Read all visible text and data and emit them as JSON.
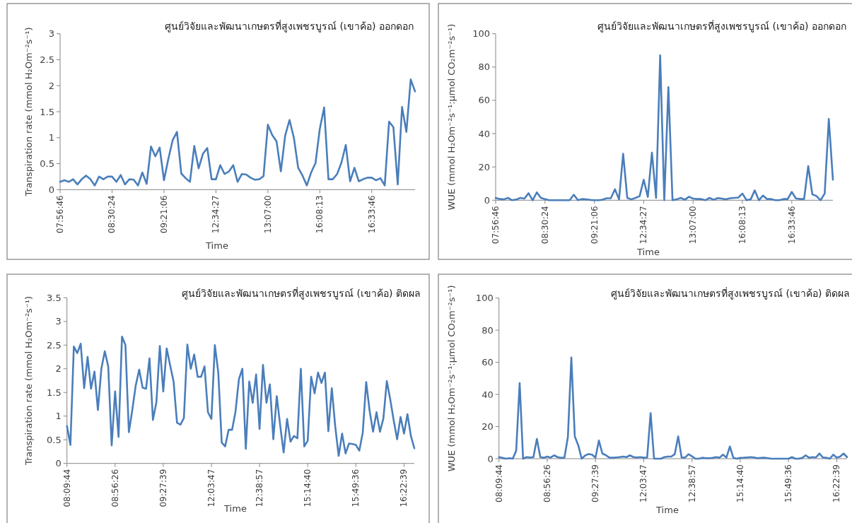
{
  "chart_data": [
    {
      "type": "line",
      "title": "ศูนย์วิจัยและพัฒนาเกษตรที่สูงเพชรบูรณ์ (เขาค้อ) ออกดอก",
      "xlabel": "Time",
      "ylabel": "Transpiration rate (mmol H₂Om⁻²s⁻¹)",
      "categories": [
        "07:56:46",
        null,
        null,
        null,
        null,
        null,
        null,
        null,
        null,
        null,
        null,
        null,
        "08:30:24",
        null,
        null,
        null,
        null,
        null,
        null,
        null,
        null,
        null,
        null,
        null,
        "09:21:06",
        null,
        null,
        null,
        null,
        null,
        null,
        null,
        null,
        null,
        null,
        null,
        "12:34:27",
        null,
        null,
        null,
        null,
        null,
        null,
        null,
        null,
        null,
        null,
        null,
        "13:07:00",
        null,
        null,
        null,
        null,
        null,
        null,
        null,
        null,
        null,
        null,
        null,
        "16:08:13",
        null,
        null,
        null,
        null,
        null,
        null,
        null,
        null,
        null,
        null,
        null,
        "16:33:46",
        null,
        null,
        null,
        null,
        null,
        null,
        null,
        null,
        null,
        null
      ],
      "series": [
        {
          "color": "#4a7ebb",
          "values": [
            0.15,
            0.18,
            0.15,
            0.2,
            0.1,
            0.2,
            0.27,
            0.2,
            0.08,
            0.25,
            0.2,
            0.25,
            0.25,
            0.15,
            0.28,
            0.1,
            0.2,
            0.19,
            0.08,
            0.33,
            0.11,
            0.83,
            0.64,
            0.81,
            0.18,
            0.59,
            0.95,
            1.11,
            0.31,
            0.22,
            0.15,
            0.84,
            0.41,
            0.69,
            0.8,
            0.2,
            0.2,
            0.47,
            0.3,
            0.35,
            0.47,
            0.15,
            0.3,
            0.29,
            0.23,
            0.19,
            0.2,
            0.26,
            1.25,
            1.05,
            0.93,
            0.35,
            1.04,
            1.34,
            1.0,
            0.42,
            0.27,
            0.08,
            0.33,
            0.51,
            1.17,
            1.58,
            0.2,
            0.2,
            0.3,
            0.52,
            0.86,
            0.16,
            0.42,
            0.16,
            0.2,
            0.23,
            0.23,
            0.18,
            0.22,
            0.08,
            1.31,
            1.2,
            0.1,
            1.59,
            1.11,
            2.12,
            1.89
          ]
        }
      ],
      "ylim": [
        0,
        3
      ],
      "yticks": [
        0,
        0.5,
        1,
        1.5,
        2,
        2.5,
        3
      ]
    },
    {
      "type": "line",
      "title": "ศูนย์วิจัยและพัฒนาเกษตรที่สูงเพชรบูรณ์ (เขาค้อ) ออกดอก",
      "xlabel": "Time",
      "ylabel": "WUE (mmol H₂Om⁻²s⁻¹:µmol CO₂m⁻²s⁻¹)",
      "categories": [
        "07:56:46",
        null,
        null,
        null,
        null,
        null,
        null,
        null,
        null,
        null,
        null,
        null,
        "08:30:24",
        null,
        null,
        null,
        null,
        null,
        null,
        null,
        null,
        null,
        null,
        null,
        "09:21:06",
        null,
        null,
        null,
        null,
        null,
        null,
        null,
        null,
        null,
        null,
        null,
        "12:34:27",
        null,
        null,
        null,
        null,
        null,
        null,
        null,
        null,
        null,
        null,
        null,
        "13:07:00",
        null,
        null,
        null,
        null,
        null,
        null,
        null,
        null,
        null,
        null,
        null,
        "16:08:13",
        null,
        null,
        null,
        null,
        null,
        null,
        null,
        null,
        null,
        null,
        null,
        "16:33:46",
        null,
        null,
        null,
        null,
        null,
        null,
        null,
        null,
        null,
        null
      ],
      "series": [
        {
          "color": "#4a7ebb",
          "values": [
            1.4,
            0.7,
            0.5,
            1.4,
            0,
            0.4,
            1.4,
            1.0,
            4.2,
            0,
            4.7,
            1.4,
            0.7,
            0,
            0,
            0,
            0,
            0,
            0,
            3.3,
            0,
            0.7,
            0.5,
            0.2,
            0,
            0,
            0.3,
            1.2,
            1.2,
            6.6,
            0.5,
            27.9,
            1.4,
            0.5,
            1.4,
            2.4,
            12.3,
            2.0,
            28.6,
            1.4,
            87,
            0,
            67.9,
            0,
            0.5,
            1.4,
            0.3,
            2.1,
            1.0,
            0.7,
            0.7,
            0,
            1.4,
            0.3,
            1.3,
            1.0,
            0.5,
            1.2,
            1.4,
            1.6,
            4.0,
            0,
            0.5,
            5.9,
            0,
            2.8,
            0.7,
            0.7,
            0,
            0,
            0.7,
            0.7,
            5.0,
            1.1,
            0.7,
            0.7,
            20.5,
            3.5,
            2.5,
            0,
            4.0,
            48.8,
            12.4
          ]
        }
      ],
      "ylim": [
        0,
        100
      ],
      "yticks": [
        0,
        20,
        40,
        60,
        80,
        100
      ]
    },
    {
      "type": "line",
      "title": "ศูนย์วิจัยและพัฒนาเกษตรที่สูงเพชรบูรณ์ (เขาค้อ) ติดผล",
      "xlabel": "Time",
      "ylabel": "Transpiration rate (mmol H₂Om⁻²s⁻¹)",
      "categories": [
        "08:09:44",
        null,
        null,
        null,
        null,
        null,
        null,
        null,
        null,
        null,
        null,
        null,
        null,
        null,
        "08:56:26",
        null,
        null,
        null,
        null,
        null,
        null,
        null,
        null,
        null,
        null,
        null,
        null,
        null,
        "09:27:39",
        null,
        null,
        null,
        null,
        null,
        null,
        null,
        null,
        null,
        null,
        null,
        null,
        null,
        "12:03:47",
        null,
        null,
        null,
        null,
        null,
        null,
        null,
        null,
        null,
        null,
        null,
        null,
        null,
        "12:38:57",
        null,
        null,
        null,
        null,
        null,
        null,
        null,
        null,
        null,
        null,
        null,
        null,
        null,
        "15:14:40",
        null,
        null,
        null,
        null,
        null,
        null,
        null,
        null,
        null,
        null,
        null,
        null,
        null,
        "15:49:36",
        null,
        null,
        null,
        null,
        null,
        null,
        null,
        null,
        null,
        null,
        null,
        null,
        null,
        "16:22:39",
        null,
        null,
        null
      ],
      "series": [
        {
          "color": "#4a7ebb",
          "values": [
            0.79,
            0.39,
            2.47,
            2.33,
            2.53,
            1.59,
            2.25,
            1.58,
            1.94,
            1.13,
            2.0,
            2.37,
            2.05,
            0.38,
            1.52,
            0.56,
            2.68,
            2.5,
            0.66,
            1.13,
            1.65,
            1.98,
            1.6,
            1.58,
            2.22,
            0.92,
            1.29,
            2.48,
            1.52,
            2.43,
            2.07,
            1.73,
            0.86,
            0.82,
            0.96,
            2.51,
            2.0,
            2.3,
            1.83,
            1.83,
            2.05,
            1.08,
            0.94,
            2.5,
            1.92,
            0.44,
            0.36,
            0.71,
            0.71,
            1.09,
            1.78,
            2.0,
            0.31,
            1.73,
            1.28,
            1.88,
            0.73,
            2.08,
            1.28,
            1.67,
            0.51,
            1.42,
            0.8,
            0.23,
            0.94,
            0.46,
            0.58,
            0.53,
            2.0,
            0.36,
            0.48,
            1.83,
            1.48,
            1.92,
            1.7,
            1.92,
            0.68,
            1.59,
            0.78,
            0.16,
            0.63,
            0.21,
            0.42,
            0.41,
            0.39,
            0.27,
            0.65,
            1.72,
            1.11,
            0.67,
            1.08,
            0.67,
            0.95,
            1.74,
            1.35,
            0.91,
            0.51,
            0.98,
            0.63,
            1.04,
            0.58,
            0.32
          ]
        }
      ],
      "ylim": [
        0,
        3.5
      ],
      "yticks": [
        0,
        0.5,
        1,
        1.5,
        2,
        2.5,
        3,
        3.5
      ]
    },
    {
      "type": "line",
      "title": "ศูนย์วิจัยและพัฒนาเกษตรที่สูงเพชรบูรณ์ (เขาค้อ) ติดผล",
      "xlabel": "Time",
      "ylabel": "WUE (mmol H₂Om⁻²s⁻¹:µmol CO₂m⁻²s⁻¹)",
      "categories": [
        "08:09:44",
        null,
        null,
        null,
        null,
        null,
        null,
        null,
        null,
        null,
        null,
        null,
        null,
        null,
        "08:56:26",
        null,
        null,
        null,
        null,
        null,
        null,
        null,
        null,
        null,
        null,
        null,
        null,
        null,
        "09:27:39",
        null,
        null,
        null,
        null,
        null,
        null,
        null,
        null,
        null,
        null,
        null,
        null,
        null,
        "12:03:47",
        null,
        null,
        null,
        null,
        null,
        null,
        null,
        null,
        null,
        null,
        null,
        null,
        null,
        "12:38:57",
        null,
        null,
        null,
        null,
        null,
        null,
        null,
        null,
        null,
        null,
        null,
        null,
        null,
        "15:14:40",
        null,
        null,
        null,
        null,
        null,
        null,
        null,
        null,
        null,
        null,
        null,
        null,
        null,
        "15:49:36",
        null,
        null,
        null,
        null,
        null,
        null,
        null,
        null,
        null,
        null,
        null,
        null,
        null,
        "16:22:39",
        null,
        null,
        null
      ],
      "series": [
        {
          "color": "#4a7ebb",
          "values": [
            1.0,
            0.5,
            0,
            0.3,
            0,
            5.0,
            47,
            0,
            1.0,
            0.7,
            1.0,
            12.3,
            1.0,
            0.6,
            1.3,
            0.7,
            2.1,
            1.0,
            0.5,
            0.7,
            13.5,
            63,
            13.9,
            8.4,
            0,
            2.0,
            2.9,
            2.5,
            0.7,
            11.3,
            3.2,
            2.2,
            0.7,
            0.6,
            0.8,
            1.0,
            1.3,
            1.0,
            2.1,
            1.0,
            0.7,
            1.0,
            0.6,
            0.7,
            28.4,
            0,
            0,
            0,
            1.0,
            1.3,
            1.3,
            2.8,
            13.9,
            0.7,
            0.7,
            2.8,
            1.5,
            0,
            0,
            0.6,
            0.3,
            0.3,
            0.5,
            1.0,
            0.6,
            2.5,
            0.7,
            7.6,
            0.6,
            0,
            0.5,
            0.6,
            0.8,
            1.0,
            0.8,
            0.3,
            0.5,
            0.6,
            0.3,
            0,
            0,
            0,
            0,
            0,
            0,
            1.0,
            0,
            0,
            0.5,
            2.1,
            0.6,
            1.0,
            0.8,
            3.2,
            0.7,
            0.6,
            0,
            2.5,
            0.7,
            1.3,
            3.2,
            1.0
          ]
        }
      ],
      "ylim": [
        0,
        100
      ],
      "yticks": [
        0,
        20,
        40,
        60,
        80,
        100
      ]
    }
  ]
}
